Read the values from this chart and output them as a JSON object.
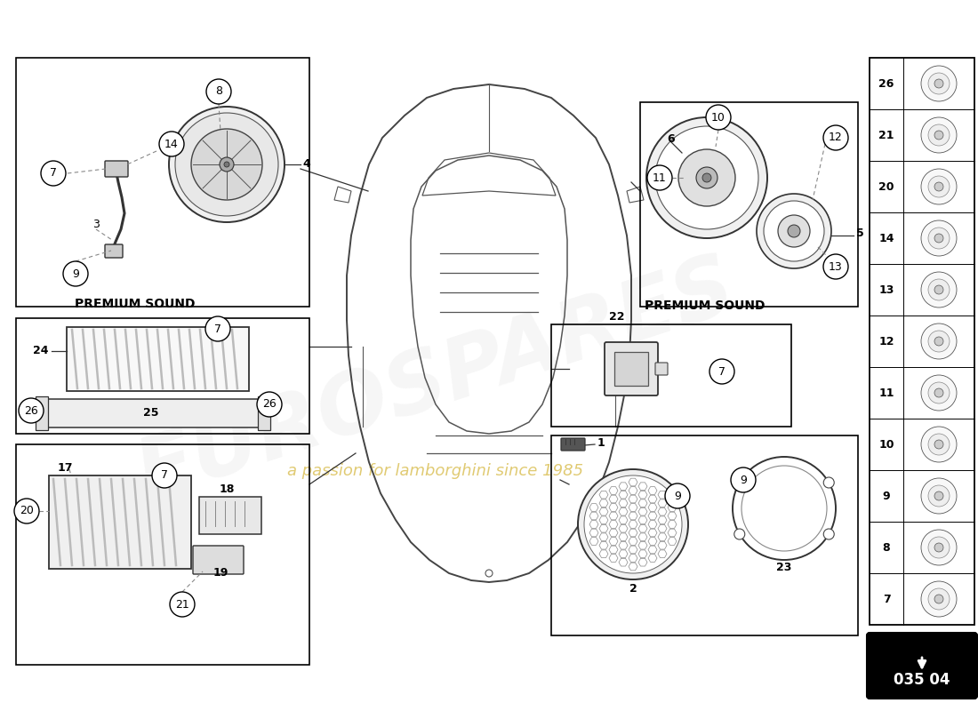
{
  "bg_color": "#ffffff",
  "diagram_number": "035 04",
  "part_numbers_right": [
    26,
    21,
    20,
    14,
    13,
    12,
    11,
    10,
    9,
    8,
    7
  ],
  "premium_sound_top": "PREMIUM SOUND",
  "premium_sound_right": "PREMIUM SOUND",
  "watermark1": "EUROSPARES",
  "watermark2": "a passion for lamborghini since 1985",
  "line_color": "#333333",
  "dash_color": "#888888"
}
